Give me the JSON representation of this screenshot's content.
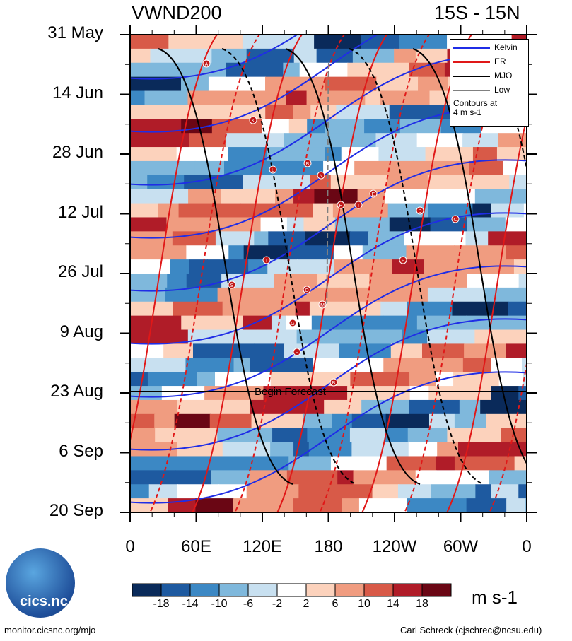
{
  "chart_data": {
    "type": "heatmap",
    "title_left": "VWND200",
    "title_right": "15S - 15N",
    "y_tick_labels": [
      "31 May",
      "14 Jun",
      "28 Jun",
      "12 Jul",
      "26 Jul",
      "9 Aug",
      "23 Aug",
      "6 Sep",
      "20 Sep"
    ],
    "x_tick_labels": [
      "0",
      "60E",
      "120E",
      "180",
      "120W",
      "60W",
      "0"
    ],
    "x_range_deg": [
      0,
      360
    ],
    "forecast_line_label": "Begin Forecast",
    "forecast_start": "23 Aug",
    "legend": {
      "entries": [
        {
          "name": "Kelvin",
          "color": "#1f2de6",
          "style": "solid"
        },
        {
          "name": "ER",
          "color": "#e01818",
          "style": "solid"
        },
        {
          "name": "MJO",
          "color": "#000000",
          "style": "solid"
        },
        {
          "name": "Low",
          "color": "#808080",
          "style": "solid"
        }
      ],
      "note_line1": "Contours at",
      "note_line2": "4 m s-1"
    },
    "colorbar": {
      "labels": [
        "-18",
        "-14",
        "-10",
        "-6",
        "-2",
        "2",
        "6",
        "10",
        "14",
        "18"
      ],
      "colors": [
        "#0a2a5a",
        "#1e5aa0",
        "#3c88c4",
        "#7fb8dc",
        "#c8e0f0",
        "#ffffff",
        "#fcd2bc",
        "#f09c80",
        "#d85a48",
        "#b01c28",
        "#6a0614"
      ],
      "units": "m s-1"
    },
    "storm_markers": [
      "A",
      "K",
      "L",
      "B",
      "N",
      "H",
      "I",
      "E",
      "D",
      "C",
      "F",
      "T",
      "S",
      "O",
      "M",
      "G",
      "R",
      "B"
    ]
  },
  "footer": {
    "left": "monitor.cicsnc.org/mjo",
    "right": "Carl Schreck (cjschrec@ncsu.edu)",
    "logo_text": "cics.nc"
  }
}
